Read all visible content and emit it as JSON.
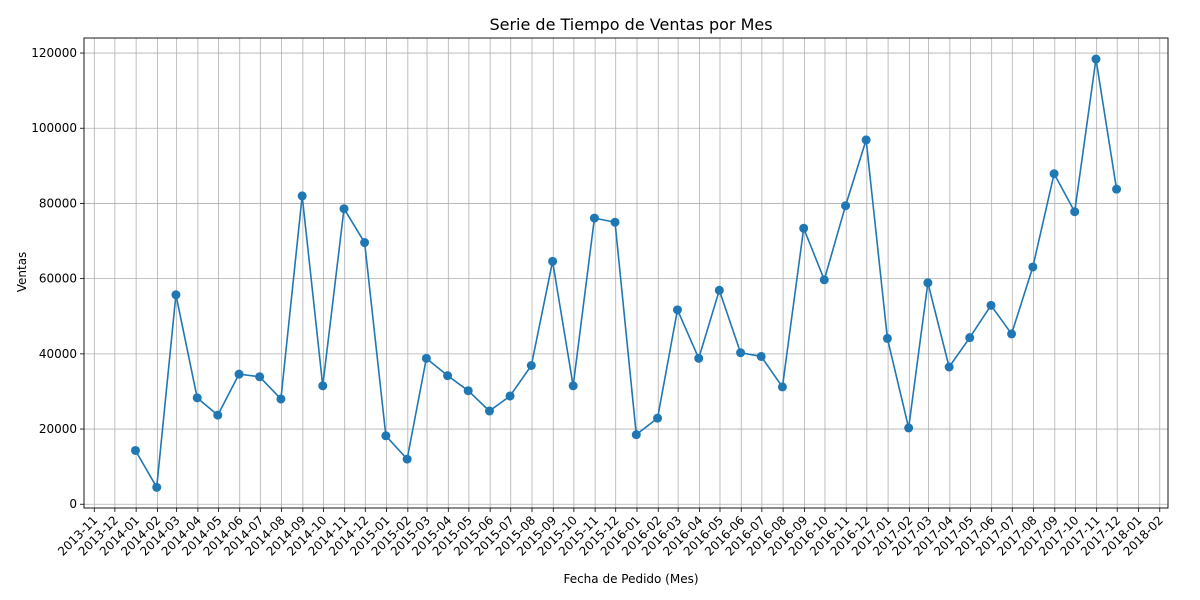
{
  "chart_data": {
    "type": "line",
    "title": "Serie de Tiempo de Ventas por Mes",
    "xlabel": "Fecha de Pedido (Mes)",
    "ylabel": "Ventas",
    "ylim": [
      -1000,
      124000
    ],
    "yticks": [
      0,
      20000,
      40000,
      60000,
      80000,
      100000,
      120000
    ],
    "xlim": [
      "2013-10-17",
      "2018-02-13"
    ],
    "xticks": [
      "2013-11",
      "2013-12",
      "2014-01",
      "2014-02",
      "2014-03",
      "2014-04",
      "2014-05",
      "2014-06",
      "2014-07",
      "2014-08",
      "2014-09",
      "2014-10",
      "2014-11",
      "2014-12",
      "2015-01",
      "2015-02",
      "2015-03",
      "2015-04",
      "2015-05",
      "2015-06",
      "2015-07",
      "2015-08",
      "2015-09",
      "2015-10",
      "2015-11",
      "2015-12",
      "2016-01",
      "2016-02",
      "2016-03",
      "2016-04",
      "2016-05",
      "2016-06",
      "2016-07",
      "2016-08",
      "2016-09",
      "2016-10",
      "2016-11",
      "2016-12",
      "2017-01",
      "2017-02",
      "2017-03",
      "2017-04",
      "2017-05",
      "2017-06",
      "2017-07",
      "2017-08",
      "2017-09",
      "2017-10",
      "2017-11",
      "2017-12",
      "2018-01",
      "2018-02"
    ],
    "grid": true,
    "color": "#1f77b4",
    "x": [
      "2013-12-31",
      "2014-01-31",
      "2014-02-28",
      "2014-03-31",
      "2014-04-30",
      "2014-05-31",
      "2014-06-30",
      "2014-07-31",
      "2014-08-31",
      "2014-09-30",
      "2014-10-31",
      "2014-11-30",
      "2014-12-31",
      "2015-01-31",
      "2015-02-28",
      "2015-03-31",
      "2015-04-30",
      "2015-05-31",
      "2015-06-30",
      "2015-07-31",
      "2015-08-31",
      "2015-09-30",
      "2015-10-31",
      "2015-11-30",
      "2015-12-31",
      "2016-01-31",
      "2016-02-29",
      "2016-03-31",
      "2016-04-30",
      "2016-05-31",
      "2016-06-30",
      "2016-07-31",
      "2016-08-31",
      "2016-09-30",
      "2016-10-31",
      "2016-11-30",
      "2016-12-31",
      "2017-01-31",
      "2017-02-28",
      "2017-03-31",
      "2017-04-30",
      "2017-05-31",
      "2017-06-30",
      "2017-07-31",
      "2017-08-31",
      "2017-09-30",
      "2017-10-31",
      "2017-11-30"
    ],
    "values": [
      14300,
      4500,
      55700,
      28300,
      23700,
      34600,
      33900,
      28000,
      82000,
      31500,
      78600,
      69600,
      18200,
      12000,
      38800,
      34200,
      30200,
      24800,
      28800,
      36900,
      64600,
      31500,
      76100,
      75000,
      18500,
      22900,
      51700,
      38800,
      56900,
      40300,
      39300,
      31200,
      73400,
      59700,
      79400,
      96900,
      44100,
      20300,
      58900,
      36500,
      44300,
      52900,
      45300,
      63100,
      87900,
      77800,
      118400,
      83800
    ]
  }
}
